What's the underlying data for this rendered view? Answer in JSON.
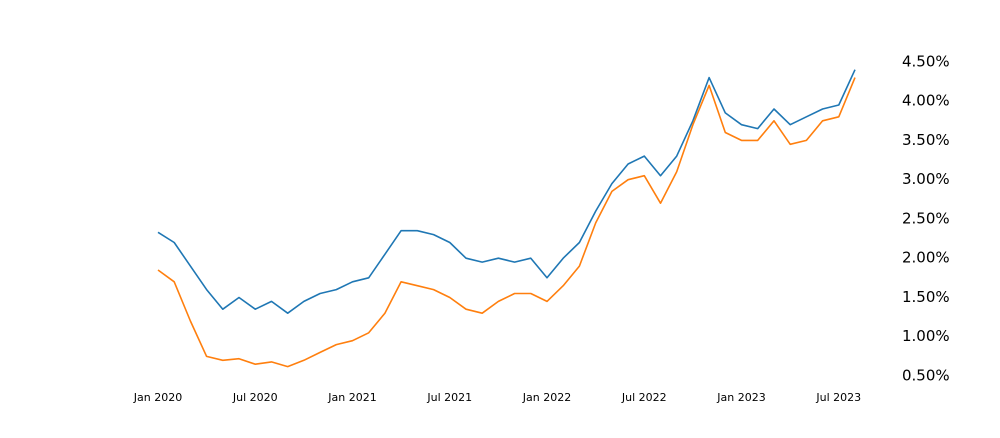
{
  "chart_data": {
    "type": "line",
    "x": [
      "2020-01",
      "2020-02",
      "2020-03",
      "2020-04",
      "2020-05",
      "2020-06",
      "2020-07",
      "2020-08",
      "2020-09",
      "2020-10",
      "2020-11",
      "2020-12",
      "2021-01",
      "2021-02",
      "2021-03",
      "2021-04",
      "2021-05",
      "2021-06",
      "2021-07",
      "2021-08",
      "2021-09",
      "2021-10",
      "2021-11",
      "2021-12",
      "2022-01",
      "2022-02",
      "2022-03",
      "2022-04",
      "2022-05",
      "2022-06",
      "2022-07",
      "2022-08",
      "2022-09",
      "2022-10",
      "2022-11",
      "2022-12",
      "2023-01",
      "2023-02",
      "2023-03",
      "2023-04",
      "2023-05",
      "2023-06",
      "2023-07",
      "2023-08"
    ],
    "series": [
      {
        "color": "#1f77b4",
        "values": [
          2.33,
          2.2,
          1.9,
          1.6,
          1.35,
          1.5,
          1.35,
          1.45,
          1.3,
          1.45,
          1.55,
          1.6,
          1.7,
          1.75,
          2.05,
          2.35,
          2.35,
          2.3,
          2.2,
          2.0,
          1.95,
          2.0,
          1.95,
          2.0,
          1.75,
          2.0,
          2.2,
          2.6,
          2.95,
          3.2,
          3.3,
          3.05,
          3.3,
          3.75,
          4.3,
          3.85,
          3.7,
          3.65,
          3.9,
          3.7,
          3.8,
          3.9,
          3.95,
          4.4
        ]
      },
      {
        "color": "#ff7f0e",
        "values": [
          1.85,
          1.7,
          1.2,
          0.75,
          0.7,
          0.72,
          0.65,
          0.68,
          0.62,
          0.7,
          0.8,
          0.9,
          0.95,
          1.05,
          1.3,
          1.7,
          1.65,
          1.6,
          1.5,
          1.35,
          1.3,
          1.45,
          1.55,
          1.55,
          1.45,
          1.65,
          1.9,
          2.45,
          2.85,
          3.0,
          3.05,
          2.7,
          3.1,
          3.7,
          4.2,
          3.6,
          3.5,
          3.5,
          3.75,
          3.45,
          3.5,
          3.75,
          3.8,
          4.3
        ]
      }
    ],
    "xlim": [
      "2020-01",
      "2023-08"
    ],
    "xticks": [
      {
        "value": "2020-01",
        "label": "Jan 2020"
      },
      {
        "value": "2020-07",
        "label": "Jul 2020"
      },
      {
        "value": "2021-01",
        "label": "Jan 2021"
      },
      {
        "value": "2021-07",
        "label": "Jul 2021"
      },
      {
        "value": "2022-01",
        "label": "Jan 2022"
      },
      {
        "value": "2022-07",
        "label": "Jul 2022"
      },
      {
        "value": "2023-01",
        "label": "Jan 2023"
      },
      {
        "value": "2023-07",
        "label": "Jul 2023"
      }
    ],
    "ylim": [
      0.36,
      4.6
    ],
    "yticks": [
      {
        "value": 0.5,
        "label": "0.50%"
      },
      {
        "value": 1.0,
        "label": "1.00%"
      },
      {
        "value": 1.5,
        "label": "1.50%"
      },
      {
        "value": 2.0,
        "label": "2.00%"
      },
      {
        "value": 2.5,
        "label": "2.50%"
      },
      {
        "value": 3.0,
        "label": "3.00%"
      },
      {
        "value": 3.5,
        "label": "3.50%"
      },
      {
        "value": 4.0,
        "label": "4.00%"
      },
      {
        "value": 4.5,
        "label": "4.50%"
      }
    ],
    "y_axis_side": "right",
    "grid": false
  }
}
